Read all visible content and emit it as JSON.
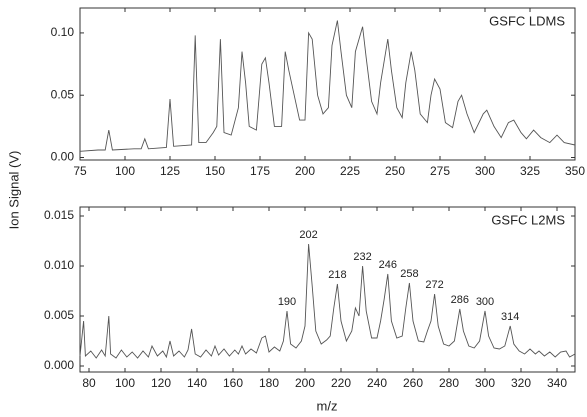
{
  "chart_data": [
    {
      "type": "line",
      "title": "GSFC LDMS",
      "ylabel": "Ion Signal (V)",
      "xlim": [
        75,
        350
      ],
      "ylim": [
        -0.002,
        0.12
      ],
      "xticks": [
        75,
        100,
        125,
        150,
        175,
        200,
        225,
        250,
        275,
        300,
        325,
        350
      ],
      "yticks": [
        {
          "value": 0,
          "label": "0.00"
        },
        {
          "value": 0.05,
          "label": "0.05"
        },
        {
          "value": 0.1,
          "label": "0.10"
        }
      ],
      "x": [
        75,
        85,
        89,
        91,
        93,
        105,
        109,
        111,
        113,
        123,
        125,
        127,
        137,
        139,
        141,
        145,
        149,
        151,
        153,
        155,
        159,
        163,
        165,
        167,
        169,
        173,
        176,
        178,
        180,
        183,
        187,
        189,
        191,
        194,
        197,
        200,
        202,
        204,
        207,
        210,
        213,
        215,
        218,
        220,
        223,
        226,
        228,
        232,
        234,
        237,
        240,
        242,
        246,
        248,
        251,
        254,
        256,
        259,
        261,
        264,
        268,
        270,
        272,
        275,
        278,
        282,
        285,
        287,
        290,
        294,
        299,
        301,
        305,
        309,
        313,
        316,
        320,
        323,
        327,
        331,
        336,
        340,
        344,
        350
      ],
      "series": [
        {
          "color": "#555555",
          "values": [
            0.005,
            0.006,
            0.006,
            0.022,
            0.006,
            0.007,
            0.007,
            0.015,
            0.007,
            0.008,
            0.047,
            0.009,
            0.01,
            0.098,
            0.012,
            0.012,
            0.02,
            0.025,
            0.095,
            0.02,
            0.018,
            0.04,
            0.085,
            0.06,
            0.025,
            0.022,
            0.075,
            0.08,
            0.06,
            0.025,
            0.025,
            0.085,
            0.07,
            0.05,
            0.03,
            0.03,
            0.1,
            0.095,
            0.05,
            0.035,
            0.04,
            0.09,
            0.11,
            0.085,
            0.05,
            0.04,
            0.085,
            0.105,
            0.08,
            0.045,
            0.035,
            0.06,
            0.095,
            0.07,
            0.04,
            0.032,
            0.06,
            0.085,
            0.07,
            0.035,
            0.028,
            0.05,
            0.063,
            0.055,
            0.028,
            0.024,
            0.045,
            0.05,
            0.035,
            0.02,
            0.035,
            0.038,
            0.025,
            0.016,
            0.028,
            0.03,
            0.02,
            0.015,
            0.022,
            0.016,
            0.012,
            0.018,
            0.012,
            0.01
          ]
        }
      ]
    },
    {
      "type": "line",
      "title": "GSFC L2MS",
      "xlabel": "m/z",
      "xlim": [
        75,
        350
      ],
      "ylim": [
        -0.0006,
        0.0159
      ],
      "xticks": [
        80,
        100,
        120,
        140,
        160,
        180,
        200,
        220,
        240,
        260,
        280,
        300,
        320,
        340
      ],
      "yticks": [
        {
          "value": 0,
          "label": "0.000"
        },
        {
          "value": 0.005,
          "label": "0.005"
        },
        {
          "value": 0.01,
          "label": "0.010"
        },
        {
          "value": 0.015,
          "label": "0.015"
        }
      ],
      "annotations": [
        {
          "x": 190,
          "label": "190"
        },
        {
          "x": 202,
          "label": "202"
        },
        {
          "x": 218,
          "label": "218"
        },
        {
          "x": 232,
          "label": "232"
        },
        {
          "x": 246,
          "label": "246"
        },
        {
          "x": 258,
          "label": "258"
        },
        {
          "x": 272,
          "label": "272"
        },
        {
          "x": 286,
          "label": "286"
        },
        {
          "x": 300,
          "label": "300"
        },
        {
          "x": 314,
          "label": "314"
        }
      ],
      "x": [
        75,
        77,
        78,
        81,
        84,
        87,
        89,
        91,
        92,
        95,
        98,
        101,
        104,
        107,
        110,
        113,
        115,
        118,
        121,
        123,
        125,
        127,
        130,
        133,
        135,
        137,
        139,
        142,
        145,
        148,
        150,
        152,
        155,
        158,
        161,
        163,
        165,
        167,
        170,
        173,
        176,
        178,
        180,
        183,
        186,
        188,
        190,
        192,
        195,
        198,
        200,
        202,
        204,
        206,
        209,
        212,
        214,
        216,
        218,
        220,
        223,
        226,
        228,
        230,
        232,
        234,
        237,
        240,
        242,
        244,
        246,
        248,
        251,
        254,
        256,
        258,
        260,
        263,
        266,
        268,
        270,
        272,
        274,
        277,
        280,
        283,
        286,
        288,
        291,
        294,
        297,
        300,
        302,
        305,
        308,
        311,
        314,
        316,
        319,
        322,
        325,
        328,
        330,
        333,
        336,
        339,
        342,
        345,
        347,
        350
      ],
      "series": [
        {
          "color": "#555555",
          "values": [
            0.001,
            0.0045,
            0.001,
            0.0015,
            0.0008,
            0.0016,
            0.001,
            0.005,
            0.0012,
            0.0008,
            0.0016,
            0.0009,
            0.0014,
            0.0008,
            0.0015,
            0.0009,
            0.002,
            0.001,
            0.0015,
            0.0009,
            0.0025,
            0.001,
            0.0015,
            0.0009,
            0.0016,
            0.0037,
            0.0012,
            0.0009,
            0.0016,
            0.001,
            0.002,
            0.0011,
            0.0017,
            0.001,
            0.0016,
            0.0012,
            0.002,
            0.0012,
            0.0017,
            0.0013,
            0.0028,
            0.003,
            0.0014,
            0.0019,
            0.0015,
            0.0025,
            0.0055,
            0.0022,
            0.0018,
            0.0025,
            0.004,
            0.0122,
            0.008,
            0.0035,
            0.0022,
            0.0026,
            0.003,
            0.0058,
            0.0082,
            0.0045,
            0.0025,
            0.0035,
            0.0058,
            0.005,
            0.01,
            0.0055,
            0.0028,
            0.0028,
            0.0045,
            0.0067,
            0.0092,
            0.0045,
            0.0028,
            0.003,
            0.0058,
            0.0083,
            0.0045,
            0.0025,
            0.0024,
            0.0035,
            0.0045,
            0.0072,
            0.004,
            0.0022,
            0.002,
            0.0025,
            0.0057,
            0.0035,
            0.002,
            0.0018,
            0.0025,
            0.0055,
            0.003,
            0.0018,
            0.0017,
            0.002,
            0.004,
            0.0022,
            0.0015,
            0.0012,
            0.0017,
            0.0012,
            0.0015,
            0.001,
            0.0014,
            0.0009,
            0.0014,
            0.0015,
            0.0009,
            0.0012
          ]
        }
      ]
    }
  ]
}
